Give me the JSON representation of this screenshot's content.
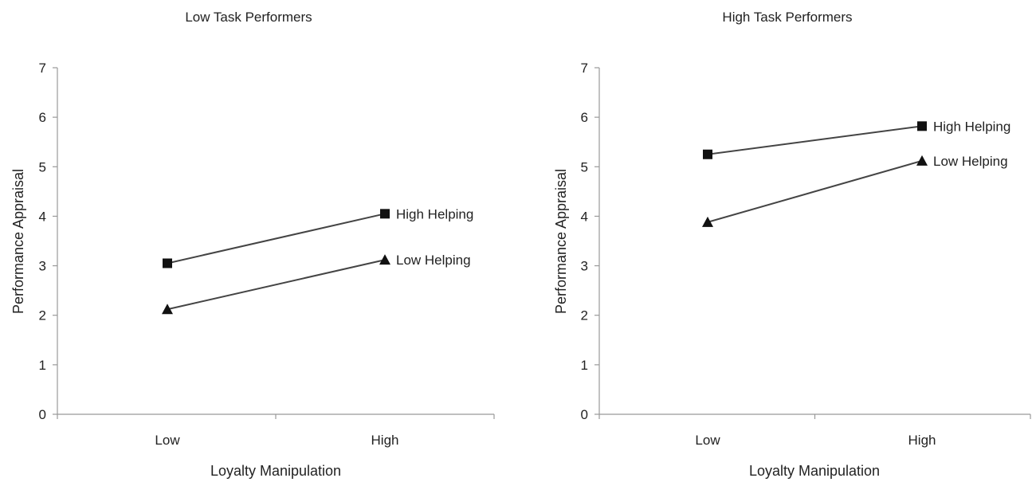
{
  "chart_data": [
    {
      "type": "line",
      "title": "Low Task Performers",
      "xlabel": "Loyalty Manipulation",
      "ylabel": "Performance Appraisal",
      "categories": [
        "Low",
        "High"
      ],
      "ylim": [
        0,
        7
      ],
      "yticks": [
        "0",
        "1",
        "2",
        "3",
        "4",
        "5",
        "6",
        "7"
      ],
      "grid": false,
      "legend": "inline-right",
      "series": [
        {
          "name": "High Helping",
          "marker": "square",
          "values": [
            3.05,
            4.05
          ]
        },
        {
          "name": "Low Helping",
          "marker": "triangle",
          "values": [
            2.12,
            3.12
          ]
        }
      ]
    },
    {
      "type": "line",
      "title": "High Task Performers",
      "xlabel": "Loyalty Manipulation",
      "ylabel": "Performance Appraisal",
      "categories": [
        "Low",
        "High"
      ],
      "ylim": [
        0,
        7
      ],
      "yticks": [
        "0",
        "1",
        "2",
        "3",
        "4",
        "5",
        "6",
        "7"
      ],
      "grid": false,
      "legend": "inline-right",
      "series": [
        {
          "name": "High Helping",
          "marker": "square",
          "values": [
            5.25,
            5.82
          ]
        },
        {
          "name": "Low Helping",
          "marker": "triangle",
          "values": [
            3.88,
            5.12
          ]
        }
      ]
    }
  ]
}
